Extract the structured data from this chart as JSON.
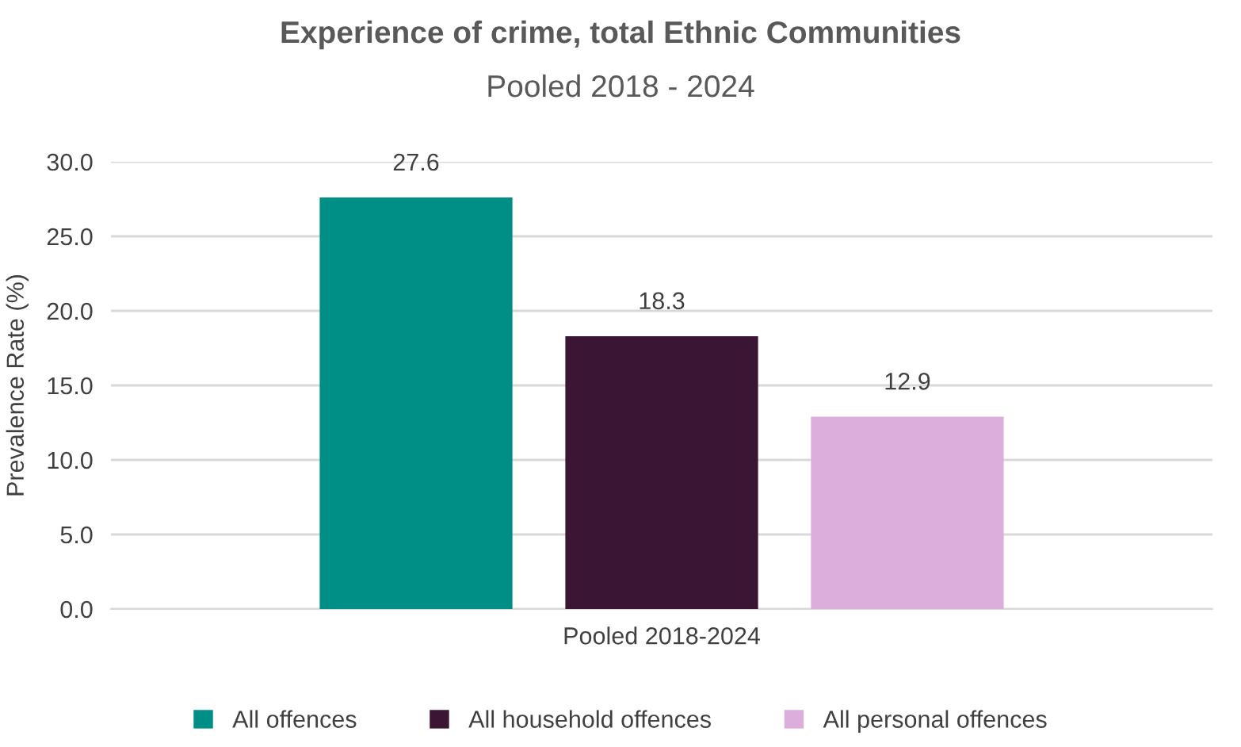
{
  "chart_data": {
    "type": "bar",
    "title": "Experience of crime, total Ethnic Communities",
    "subtitle": "Pooled 2018 - 2024",
    "ylabel": "Prevalence Rate (%)",
    "categories": [
      "Pooled 2018-2024"
    ],
    "series": [
      {
        "name": "All offences",
        "color": "#008f87",
        "values": [
          27.6
        ]
      },
      {
        "name": "All household offences",
        "color": "#3b1634",
        "values": [
          18.3
        ]
      },
      {
        "name": "All personal offences",
        "color": "#dbaedb",
        "values": [
          12.9
        ]
      }
    ],
    "ylim": [
      0,
      30
    ],
    "yticks": [
      {
        "value": 0,
        "label": "0.0"
      },
      {
        "value": 5,
        "label": "5.0"
      },
      {
        "value": 10,
        "label": "10.0"
      },
      {
        "value": 15,
        "label": "15.0"
      },
      {
        "value": 20,
        "label": "20.0"
      },
      {
        "value": 25,
        "label": "25.0"
      },
      {
        "value": 30,
        "label": "30.0"
      }
    ],
    "grid": "y",
    "legend": "bottom",
    "data_labels": true
  }
}
